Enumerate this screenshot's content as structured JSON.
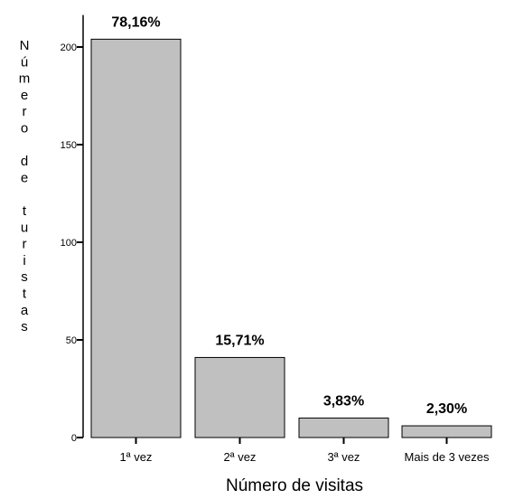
{
  "chart_data": {
    "type": "bar",
    "categories": [
      "1ª vez",
      "2ª vez",
      "3ª vez",
      "Mais de 3 vezes"
    ],
    "values": [
      204,
      41,
      10,
      6
    ],
    "data_labels": [
      "78,16%",
      "15,71%",
      "3,83%",
      "2,30%"
    ],
    "xlabel": "Número de visitas",
    "ylabel": "Número de turistas",
    "ylim": [
      0,
      215
    ],
    "yticks": [
      0,
      50,
      100,
      150,
      200
    ],
    "grid": false,
    "bar_color": "#c0c0c0",
    "bar_stroke": "#000000"
  }
}
